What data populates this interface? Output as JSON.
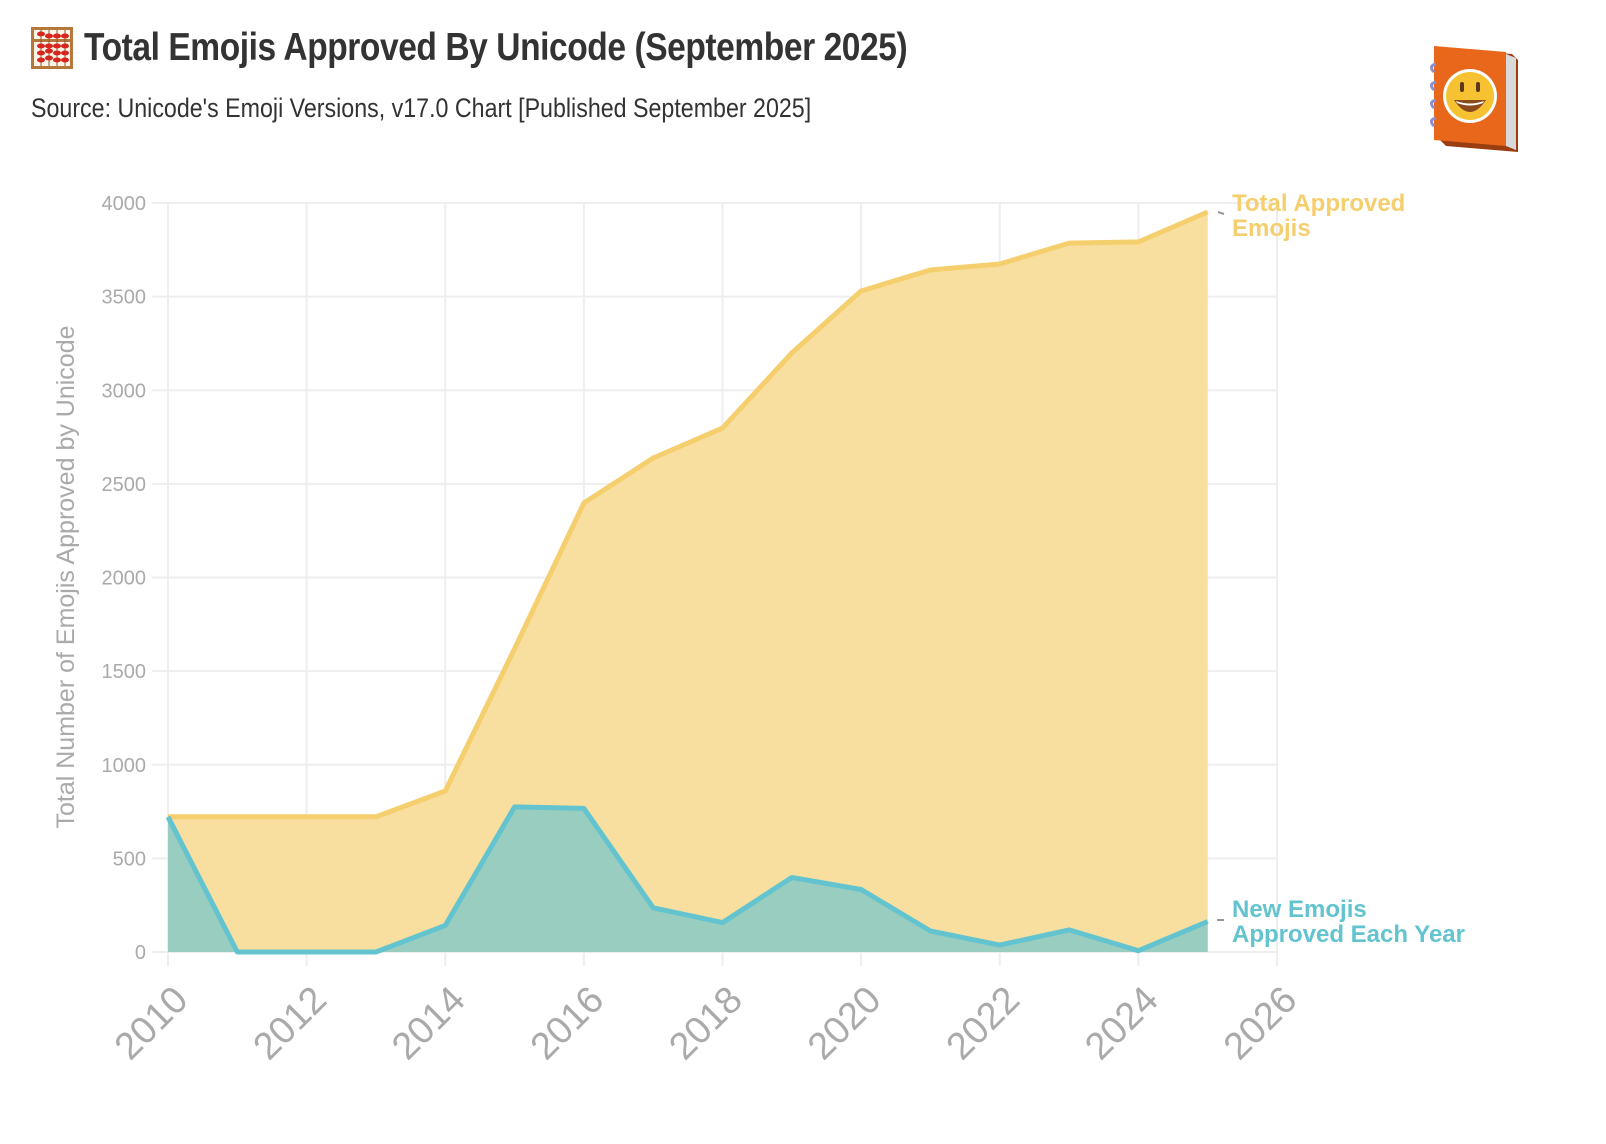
{
  "header": {
    "title": "Total Emojis Approved By Unicode (September 2025)",
    "title_icon": "abacus-icon",
    "subtitle": "Source: Unicode's Emoji Versions, v17.0 Chart [Published September 2025]",
    "logo_icon": "emoji-notebook-logo-icon"
  },
  "colors": {
    "total_fill": "#f8dd9b",
    "total_line": "#f5cf6e",
    "new_fill": "#98cdbf",
    "new_line": "#63c4cf",
    "grid": "#eeeeee",
    "tick_text": "#aaaaaa",
    "title_text": "#333333"
  },
  "annotations": {
    "total_line1": "Total Approved",
    "total_line2": "Emojis",
    "new_line1": "New Emojis",
    "new_line2": "Approved Each Year"
  },
  "chart_data": {
    "type": "area",
    "title": "Total Emojis Approved By Unicode (September 2025)",
    "subtitle": "Source: Unicode's Emoji Versions, v17.0 Chart [Published September 2025]",
    "xlabel": "",
    "ylabel": "Total Number of Emojis Approved by Unicode",
    "x": [
      2010,
      2011,
      2012,
      2013,
      2014,
      2015,
      2016,
      2017,
      2018,
      2019,
      2020,
      2021,
      2022,
      2023,
      2024,
      2025
    ],
    "series": [
      {
        "name": "Total Approved Emojis",
        "values": [
          722,
          722,
          722,
          722,
          860,
          1620,
          2398,
          2638,
          2798,
          3199,
          3530,
          3642,
          3674,
          3786,
          3792,
          3952
        ]
      },
      {
        "name": "New Emojis Approved Each Year",
        "values": [
          722,
          0,
          0,
          0,
          142,
          775,
          767,
          236,
          157,
          398,
          334,
          112,
          37,
          118,
          7,
          163
        ]
      }
    ],
    "xlim": [
      2010,
      2026
    ],
    "ylim": [
      0,
      4000
    ],
    "x_ticks": [
      "2010",
      "2012",
      "2014",
      "2016",
      "2018",
      "2020",
      "2022",
      "2024",
      "2026"
    ],
    "y_ticks": [
      "0",
      "500",
      "1000",
      "1500",
      "2000",
      "2500",
      "3000",
      "3500",
      "4000"
    ],
    "grid": true,
    "legend_position": "direct labels at right end of series"
  }
}
